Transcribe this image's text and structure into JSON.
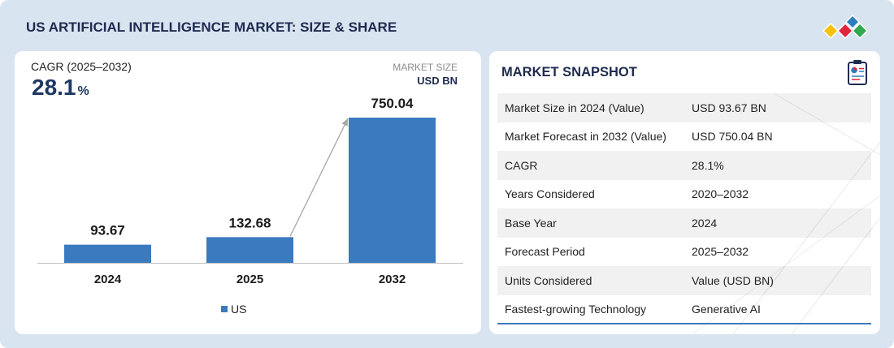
{
  "header": {
    "title": "US ARTIFICIAL INTELLIGENCE MARKET: SIZE & SHARE",
    "title_color": "#1e2b4f"
  },
  "logo": {
    "icon": "diamond-cluster-logo-icon",
    "colors": [
      "#f4c20d",
      "#e0243a",
      "#2fa84f",
      "#2a7fc1"
    ]
  },
  "chart_panel": {
    "cagr_label": "CAGR (2025–2032)",
    "cagr_value": "28.1",
    "cagr_unit": "%"
  },
  "chart_data": {
    "type": "bar",
    "categories": [
      "2024",
      "2025",
      "2032"
    ],
    "series": [
      {
        "name": "US",
        "values": [
          93.67,
          132.68,
          750.04
        ],
        "color": "#3a7abf"
      }
    ],
    "ylabel": "MARKET SIZE",
    "yunit": "USD BN",
    "data_labels": true,
    "grid": false,
    "legend": "bottom",
    "growth_arrow": {
      "icon": "growth-arrow-icon",
      "from_index": 1,
      "to_index": 2,
      "color": "#a6a6a6"
    }
  },
  "snapshot": {
    "title": "MARKET SNAPSHOT",
    "icon": "report-clipboard-icon",
    "accent": "#3a7abf",
    "rows": [
      {
        "label": "Market Size in 2024 (Value)",
        "value": "USD 93.67 BN"
      },
      {
        "label": "Market Forecast in 2032 (Value)",
        "value": "USD 750.04 BN"
      },
      {
        "label": "CAGR",
        "value": "28.1%"
      },
      {
        "label": "Years Considered",
        "value": "2020–2032"
      },
      {
        "label": "Base Year",
        "value": "2024"
      },
      {
        "label": "Forecast Period",
        "value": "2025–2032"
      },
      {
        "label": "Units Considered",
        "value": "Value (USD BN)"
      },
      {
        "label": "Fastest-growing Technology",
        "value": "Generative AI"
      }
    ]
  }
}
